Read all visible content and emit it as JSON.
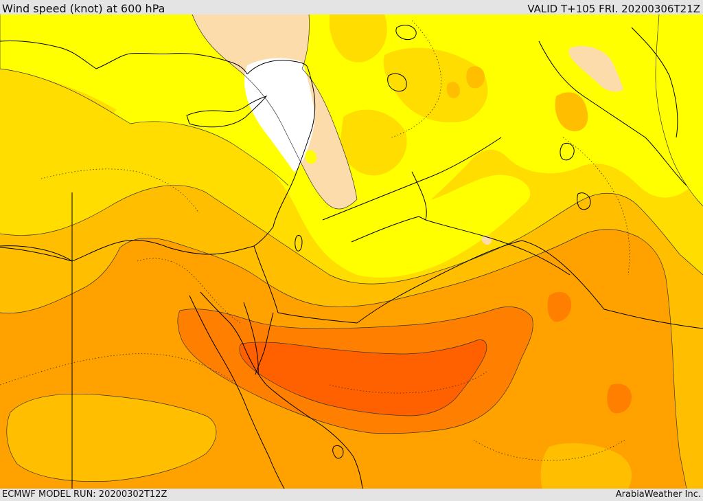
{
  "header": {
    "title": "Wind speed (knot) at 600 hPa",
    "valid": "VALID T+105 FRI. 20200306T21Z"
  },
  "footer": {
    "model_run": "ECMWF MODEL RUN: 20200302T12Z",
    "credit": "ArabiaWeather Inc."
  },
  "map": {
    "field": "wind speed",
    "level": "600 hPa",
    "palette": {
      "calm": "#ffffff",
      "very_light": "#fbdcaa",
      "light": "#ffff00",
      "moderate": "#ffdd00",
      "fresh": "#ffbf00",
      "strong": "#ffa200",
      "very_strong": "#ff8000",
      "jet_core": "#ff6000"
    },
    "line_colors": {
      "borders": "#000000",
      "contours": "#333333"
    }
  }
}
